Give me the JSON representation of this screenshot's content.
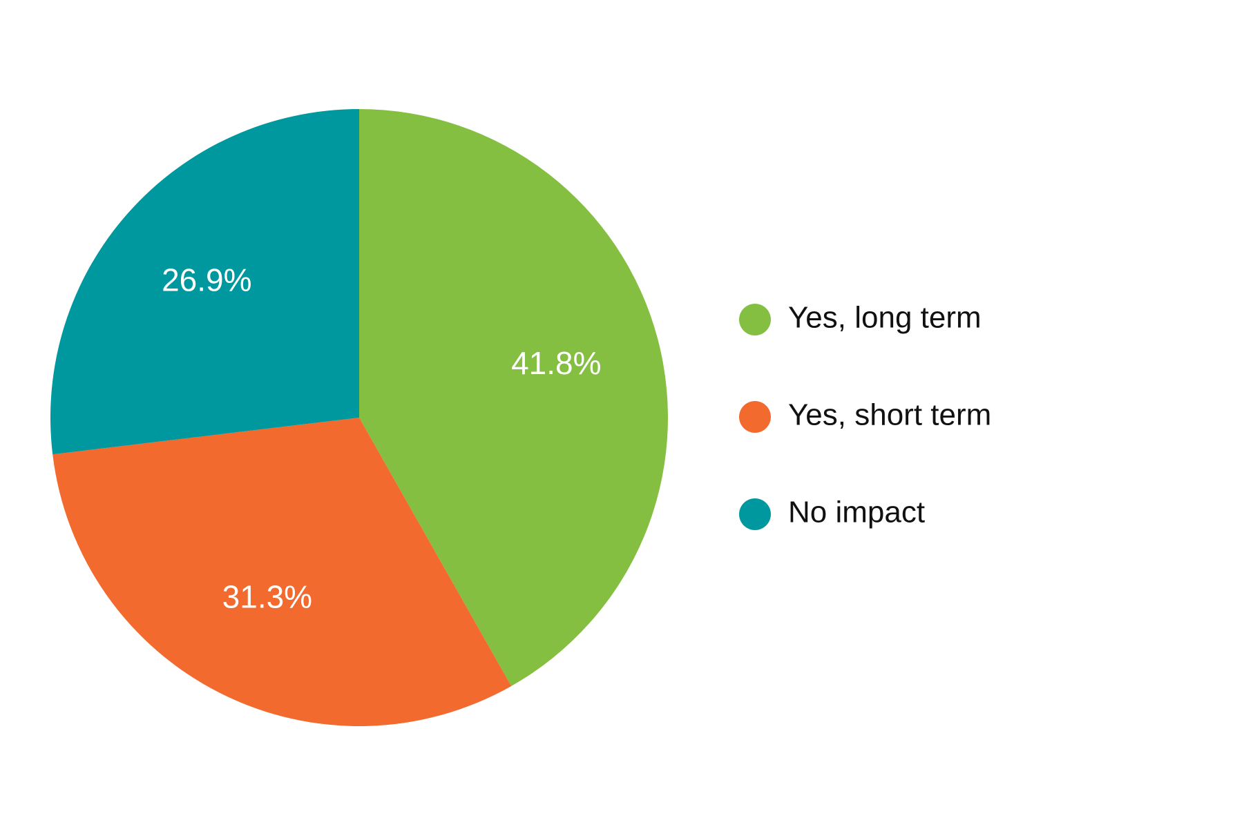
{
  "chart_data": {
    "type": "pie",
    "title": "",
    "categories": [
      "Yes, long term",
      "Yes, short term",
      "No impact"
    ],
    "values": [
      41.8,
      31.3,
      26.9
    ],
    "value_labels": [
      "41.8%",
      "31.3%",
      "26.9%"
    ],
    "colors": [
      "#84bf41",
      "#f26a2e",
      "#00989f"
    ],
    "start_angle": "12 o'clock",
    "direction": "clockwise",
    "legend_placement": "right"
  }
}
